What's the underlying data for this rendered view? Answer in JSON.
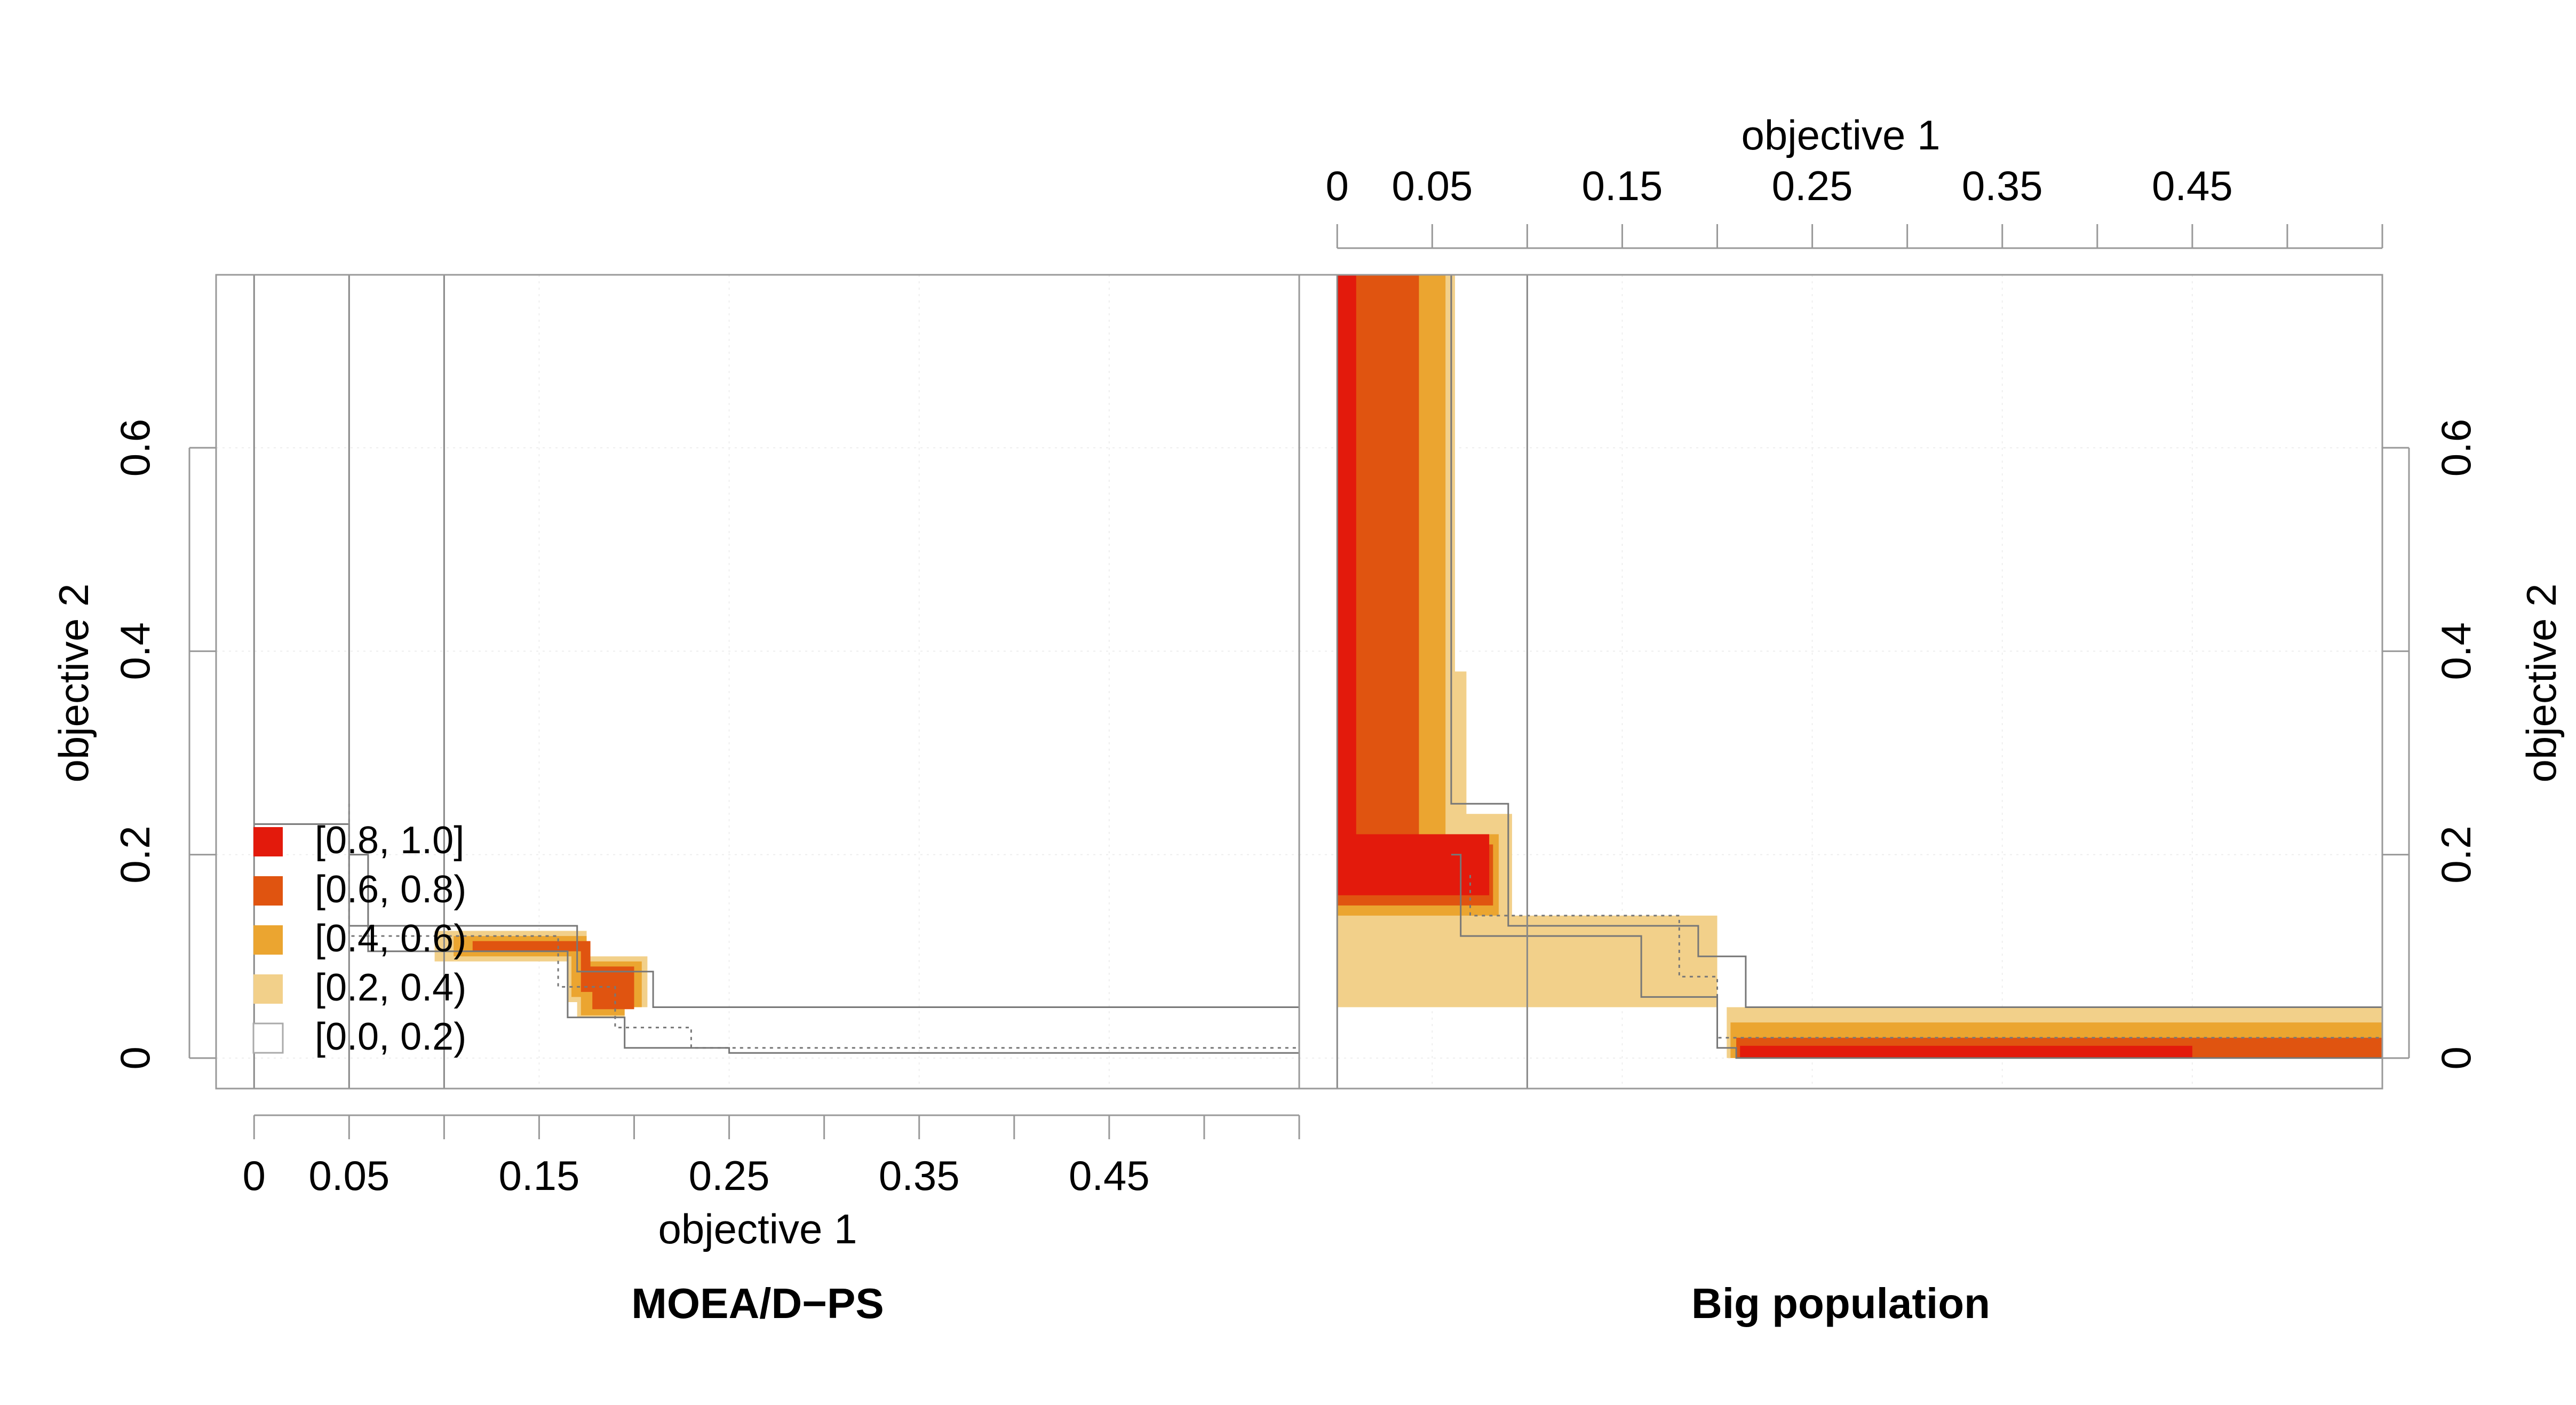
{
  "colors": {
    "level_0_8_1_0": "#e31a0c",
    "level_0_6_0_8": "#e05410",
    "level_0_4_0_6": "#eba530",
    "level_0_2_0_4": "#f2d08a",
    "level_0_0_0_2": "#ffffff",
    "frame": "#999999",
    "grid": "#eeeeee",
    "reference_line": "#888888"
  },
  "chart_data": {
    "type": "area",
    "description_of_encoding": "Empirical attainment function differences between two optimizers; shaded regions colored by difference level",
    "x_axis": {
      "label": "objective 1",
      "ticks": [
        0,
        0.05,
        0.15,
        0.25,
        0.35,
        0.45
      ],
      "tick_labels": [
        "0",
        "0.05",
        "0.15",
        "0.25",
        "0.35",
        "0.45"
      ],
      "range": [
        -0.02,
        0.55
      ]
    },
    "y_axis": {
      "label": "objective 2",
      "ticks": [
        0,
        0.2,
        0.4,
        0.6
      ],
      "tick_labels": [
        "0",
        "0.2",
        "0.4",
        "0.6"
      ],
      "range": [
        -0.03,
        0.77
      ]
    },
    "legend": {
      "placement": "bottom-left of left panel",
      "entries": [
        {
          "label": "[0.8, 1.0]",
          "color_key": "level_0_8_1_0"
        },
        {
          "label": "[0.6, 0.8)",
          "color_key": "level_0_6_0_8"
        },
        {
          "label": "[0.4, 0.6)",
          "color_key": "level_0_4_0_6"
        },
        {
          "label": "[0.2, 0.4)",
          "color_key": "level_0_2_0_4"
        },
        {
          "label": "[0.0, 0.2)",
          "color_key": "level_0_0_0_2"
        }
      ]
    },
    "panels": [
      {
        "title": "MOEA/D−PS",
        "x_axis_side": "bottom",
        "y_axis_side": "left",
        "regions": [
          {
            "level": "level_0_2_0_4",
            "polygon": [
              [
                0.095,
                0.125
              ],
              [
                0.175,
                0.125
              ],
              [
                0.175,
                0.1
              ],
              [
                0.207,
                0.1
              ],
              [
                0.207,
                0.05
              ],
              [
                0.195,
                0.05
              ],
              [
                0.195,
                0.04
              ],
              [
                0.17,
                0.04
              ],
              [
                0.17,
                0.055
              ],
              [
                0.165,
                0.055
              ],
              [
                0.165,
                0.095
              ],
              [
                0.095,
                0.095
              ]
            ]
          },
          {
            "level": "level_0_4_0_6",
            "polygon": [
              [
                0.105,
                0.12
              ],
              [
                0.175,
                0.12
              ],
              [
                0.175,
                0.095
              ],
              [
                0.204,
                0.095
              ],
              [
                0.204,
                0.05
              ],
              [
                0.195,
                0.05
              ],
              [
                0.195,
                0.042
              ],
              [
                0.172,
                0.042
              ],
              [
                0.172,
                0.06
              ],
              [
                0.167,
                0.06
              ],
              [
                0.167,
                0.1
              ],
              [
                0.105,
                0.1
              ]
            ]
          },
          {
            "level": "level_0_6_0_8",
            "polygon": [
              [
                0.115,
                0.115
              ],
              [
                0.177,
                0.115
              ],
              [
                0.177,
                0.09
              ],
              [
                0.2,
                0.09
              ],
              [
                0.2,
                0.048
              ],
              [
                0.178,
                0.048
              ],
              [
                0.178,
                0.065
              ],
              [
                0.172,
                0.065
              ],
              [
                0.172,
                0.105
              ],
              [
                0.115,
                0.105
              ]
            ]
          }
        ],
        "attainment_lines": [
          {
            "style": "solid",
            "points": [
              [
                0,
                0.23
              ],
              [
                0.05,
                0.23
              ],
              [
                0.05,
                0.13
              ],
              [
                0.17,
                0.13
              ],
              [
                0.17,
                0.085
              ],
              [
                0.21,
                0.085
              ],
              [
                0.21,
                0.05
              ],
              [
                0.55,
                0.05
              ]
            ]
          },
          {
            "style": "dotted",
            "points": [
              [
                0.05,
                0.25
              ],
              [
                0.05,
                0.12
              ],
              [
                0.16,
                0.12
              ],
              [
                0.16,
                0.07
              ],
              [
                0.19,
                0.07
              ],
              [
                0.19,
                0.03
              ],
              [
                0.23,
                0.03
              ],
              [
                0.23,
                0.01
              ],
              [
                0.55,
                0.01
              ]
            ]
          },
          {
            "style": "solid",
            "points": [
              [
                0.05,
                0.2
              ],
              [
                0.06,
                0.2
              ],
              [
                0.06,
                0.105
              ],
              [
                0.165,
                0.105
              ],
              [
                0.165,
                0.04
              ],
              [
                0.195,
                0.04
              ],
              [
                0.195,
                0.01
              ],
              [
                0.25,
                0.01
              ],
              [
                0.25,
                0.005
              ],
              [
                0.55,
                0.005
              ]
            ]
          }
        ],
        "reference_x": [
          0,
          0.05,
          0.1
        ]
      },
      {
        "title": "Big population",
        "x_axis_side": "top",
        "y_axis_side": "right",
        "regions": [
          {
            "level": "level_0_2_0_4",
            "polygon": [
              [
                0,
                0.77
              ],
              [
                0.062,
                0.77
              ],
              [
                0.062,
                0.38
              ],
              [
                0.068,
                0.38
              ],
              [
                0.068,
                0.24
              ],
              [
                0.092,
                0.24
              ],
              [
                0.092,
                0.14
              ],
              [
                0.2,
                0.14
              ],
              [
                0.2,
                0.05
              ],
              [
                0.55,
                0.05
              ],
              [
                0,
                0.05
              ]
            ]
          },
          {
            "level": "level_0_2_0_4",
            "polygon": [
              [
                0.205,
                0.05
              ],
              [
                0.55,
                0.05
              ],
              [
                0.55,
                0.0
              ],
              [
                0.205,
                0.0
              ]
            ]
          },
          {
            "level": "level_0_4_0_6",
            "polygon": [
              [
                0,
                0.77
              ],
              [
                0.057,
                0.77
              ],
              [
                0.057,
                0.22
              ],
              [
                0.085,
                0.22
              ],
              [
                0.085,
                0.14
              ],
              [
                0.0,
                0.14
              ]
            ]
          },
          {
            "level": "level_0_4_0_6",
            "polygon": [
              [
                0.207,
                0.035
              ],
              [
                0.55,
                0.035
              ],
              [
                0.55,
                0.0
              ],
              [
                0.207,
                0.0
              ]
            ]
          },
          {
            "level": "level_0_6_0_8",
            "polygon": [
              [
                0,
                0.77
              ],
              [
                0.043,
                0.77
              ],
              [
                0.043,
                0.21
              ],
              [
                0.082,
                0.21
              ],
              [
                0.082,
                0.15
              ],
              [
                0.0,
                0.15
              ]
            ]
          },
          {
            "level": "level_0_6_0_8",
            "polygon": [
              [
                0.21,
                0.02
              ],
              [
                0.55,
                0.02
              ],
              [
                0.55,
                0.0
              ],
              [
                0.21,
                0.0
              ]
            ]
          },
          {
            "level": "level_0_8_1_0",
            "polygon": [
              [
                0,
                0.77
              ],
              [
                0.01,
                0.77
              ],
              [
                0.01,
                0.22
              ],
              [
                0.08,
                0.22
              ],
              [
                0.08,
                0.16
              ],
              [
                0.0,
                0.16
              ]
            ]
          },
          {
            "level": "level_0_8_1_0",
            "polygon": [
              [
                0.212,
                0.012
              ],
              [
                0.45,
                0.012
              ],
              [
                0.45,
                0.0
              ],
              [
                0.212,
                0.0
              ]
            ]
          }
        ],
        "attainment_lines": [
          {
            "style": "solid",
            "points": [
              [
                0,
                0.77
              ],
              [
                0.06,
                0.77
              ],
              [
                0.06,
                0.25
              ],
              [
                0.09,
                0.25
              ],
              [
                0.09,
                0.13
              ],
              [
                0.19,
                0.13
              ],
              [
                0.19,
                0.1
              ],
              [
                0.215,
                0.1
              ],
              [
                0.215,
                0.05
              ],
              [
                0.55,
                0.05
              ]
            ]
          },
          {
            "style": "dotted",
            "points": [
              [
                0.07,
                0.18
              ],
              [
                0.07,
                0.14
              ],
              [
                0.18,
                0.14
              ],
              [
                0.18,
                0.08
              ],
              [
                0.2,
                0.08
              ],
              [
                0.2,
                0.02
              ],
              [
                0.55,
                0.02
              ]
            ]
          },
          {
            "style": "solid",
            "points": [
              [
                0.06,
                0.2
              ],
              [
                0.065,
                0.2
              ],
              [
                0.065,
                0.12
              ],
              [
                0.16,
                0.12
              ],
              [
                0.16,
                0.06
              ],
              [
                0.2,
                0.06
              ],
              [
                0.2,
                0.01
              ],
              [
                0.21,
                0.01
              ],
              [
                0.21,
                0.0
              ],
              [
                0.55,
                0.0
              ]
            ]
          }
        ],
        "reference_x": [
          0,
          0.1
        ]
      }
    ]
  }
}
